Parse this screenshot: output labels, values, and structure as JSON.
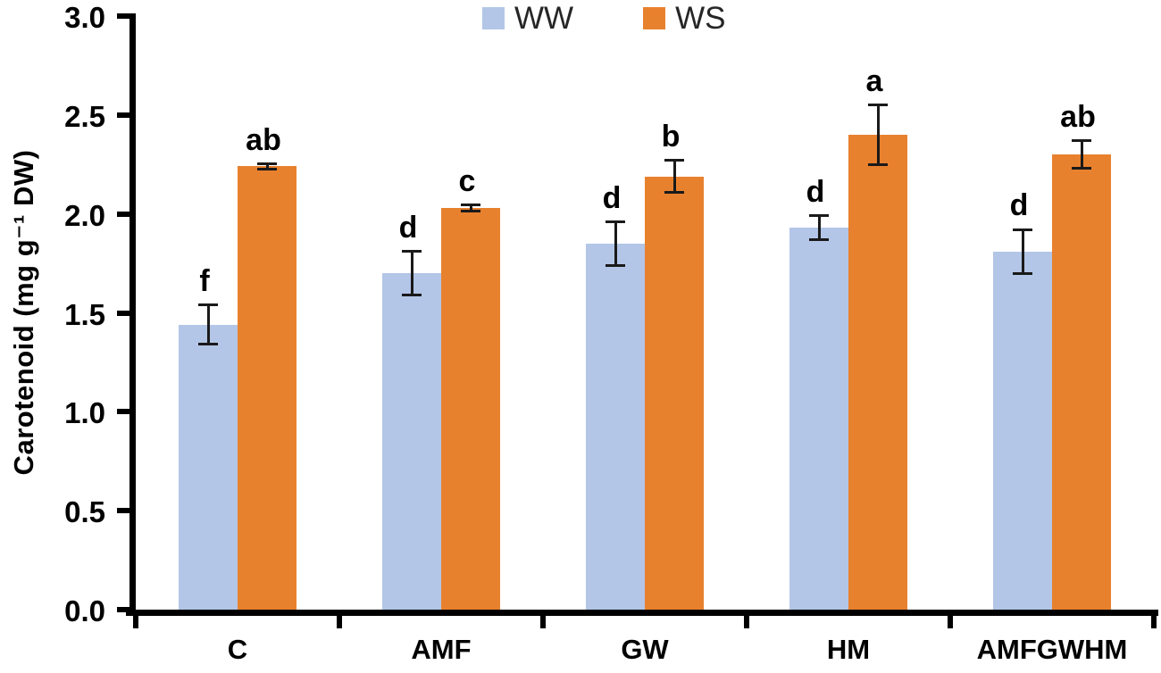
{
  "chart_data": {
    "type": "bar",
    "title": "",
    "ylabel": "Carotenoid (mg g⁻¹ DW)",
    "xlabel": "",
    "ylim": [
      0,
      3.0
    ],
    "ytick_step": 0.5,
    "ytick_labels": [
      "3.0",
      "2.5",
      "2.0",
      "1.5",
      "1.0",
      "0.5",
      "0.0"
    ],
    "categories": [
      "C",
      "AMF",
      "GW",
      "HM",
      "AMFGWHM"
    ],
    "grid": false,
    "legend_position": "top-center",
    "error_bars": true,
    "series": [
      {
        "name": "WW",
        "color": "#B3C6E7",
        "values": [
          1.44,
          1.7,
          1.85,
          1.93,
          1.81
        ],
        "errors": [
          0.1,
          0.11,
          0.11,
          0.06,
          0.11
        ],
        "letters": [
          "f",
          "d",
          "d",
          "d",
          "d"
        ]
      },
      {
        "name": "WS",
        "color": "#E8812E",
        "values": [
          2.24,
          2.03,
          2.19,
          2.4,
          2.3
        ],
        "errors": [
          0.012,
          0.015,
          0.08,
          0.15,
          0.07
        ],
        "letters": [
          "ab",
          "c",
          "b",
          "a",
          "ab"
        ]
      }
    ]
  },
  "style": {
    "axis_color": "#000000",
    "text_color": "#000000",
    "legend_text_color": "#262626",
    "background": "#FFFFFF"
  }
}
